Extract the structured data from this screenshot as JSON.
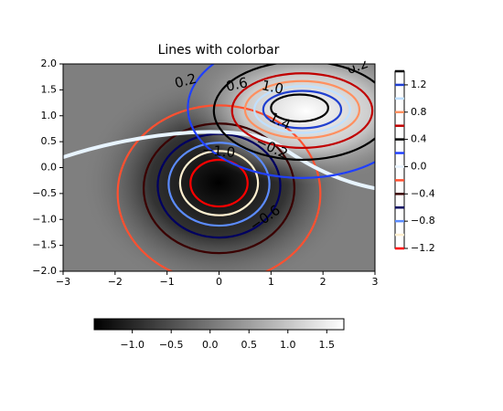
{
  "chart_data": {
    "type": "contour",
    "title": "Lines with colorbar",
    "xlim": [
      -3,
      3
    ],
    "ylim": [
      -2,
      2
    ],
    "xticks": [
      {
        "value": -3,
        "label": "−3"
      },
      {
        "value": -2,
        "label": "−2"
      },
      {
        "value": -1,
        "label": "−1"
      },
      0,
      1,
      2,
      3
    ],
    "yticks": [
      {
        "value": -2,
        "label": "−2.0"
      },
      {
        "value": -1.5,
        "label": "−1.5"
      },
      {
        "value": -1,
        "label": "−1.0"
      },
      {
        "value": -0.5,
        "label": "−0.5"
      },
      {
        "value": 0,
        "label": "0.0"
      },
      {
        "value": 0.5,
        "label": "0.5"
      },
      {
        "value": 1,
        "label": "1.0"
      },
      {
        "value": 1.5,
        "label": "1.5"
      },
      {
        "value": 2,
        "label": "2.0"
      }
    ],
    "levels": [
      -1.2,
      -1.0,
      -0.8,
      -0.6,
      -0.4,
      -0.2,
      0.0,
      0.2,
      0.4,
      0.6,
      0.8,
      1.0,
      1.2,
      1.4
    ],
    "level_colors": [
      "#ff0000",
      "#fff0d0",
      "#5c8cff",
      "#000060",
      "#3a0000",
      "#ff5030",
      "#e8f4ff",
      "#2040ff",
      "#000000",
      "#c00000",
      "#ff9060",
      "#c0e0ff",
      "#2040d0",
      "#000000"
    ],
    "contour_labels": [
      {
        "value": 0.2,
        "label": "0.2"
      },
      {
        "value": 0.6,
        "label": "0.6"
      },
      {
        "value": 1.0,
        "label": "1.0"
      },
      {
        "value": 1.4,
        "label": "1.4"
      },
      {
        "value": -1.0,
        "label": "−1.0"
      },
      {
        "value": -0.2,
        "label": "−0.2"
      },
      {
        "value": -0.6,
        "label": "−0.6"
      },
      {
        "value": 0.2,
        "label": "0.2"
      }
    ],
    "line_colorbar": {
      "lim": [
        -1.2,
        1.4
      ],
      "ticks": [
        {
          "value": -1.2,
          "label": "−1.2"
        },
        {
          "value": -0.8,
          "label": "−0.8"
        },
        {
          "value": -0.4,
          "label": "−0.4"
        },
        {
          "value": 0.0,
          "label": "0.0"
        },
        {
          "value": 0.4,
          "label": "0.4"
        },
        {
          "value": 0.8,
          "label": "0.8"
        },
        {
          "value": 1.2,
          "label": "1.2"
        }
      ]
    },
    "image_colorbar": {
      "lim": [
        -1.49,
        1.72
      ],
      "ticks": [
        {
          "value": -1.0,
          "label": "−1.0"
        },
        {
          "value": -0.5,
          "label": "−0.5"
        },
        {
          "value": 0.0,
          "label": "0.0"
        },
        {
          "value": 0.5,
          "label": "0.5"
        },
        {
          "value": 1.0,
          "label": "1.0"
        },
        {
          "value": 1.5,
          "label": "1.5"
        }
      ]
    }
  }
}
